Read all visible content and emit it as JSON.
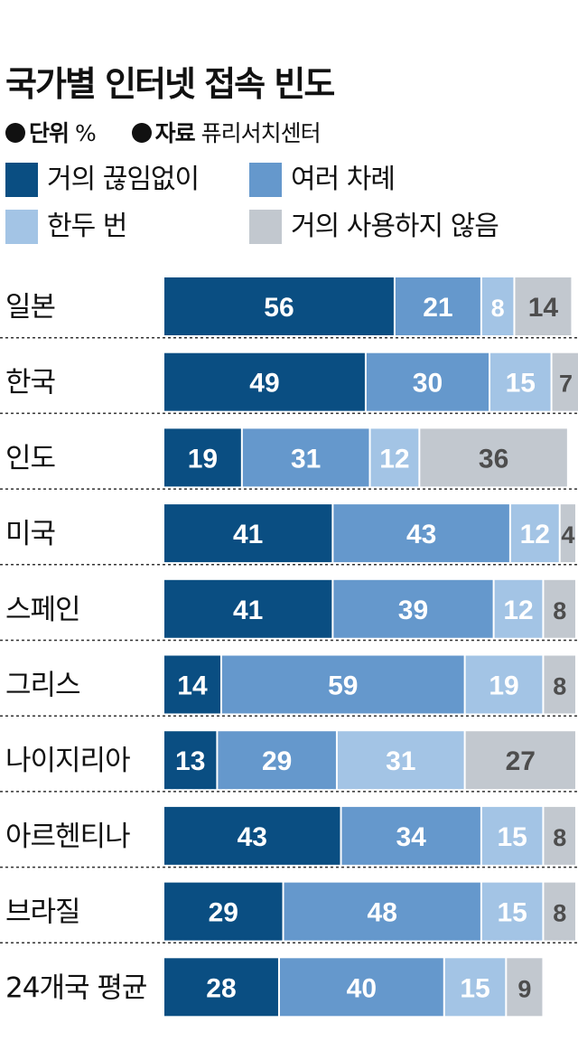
{
  "title": "국가별 인터넷 접속 빈도",
  "unit_label": "단위",
  "unit_value": "%",
  "source_label": "자료",
  "source_value": "퓨리서치센터",
  "colors": [
    "#0a4e82",
    "#6598cc",
    "#a3c4e5",
    "#c2c8cf"
  ],
  "chart_data": {
    "type": "bar",
    "orientation": "horizontal",
    "stacked": true,
    "title": "국가별 인터넷 접속 빈도",
    "categories": [
      "일본",
      "한국",
      "인도",
      "미국",
      "스페인",
      "그리스",
      "나이지리아",
      "아르헨티나",
      "브라질",
      "24개국 평균"
    ],
    "series": [
      {
        "name": "거의 끊임없이",
        "values": [
          56,
          49,
          19,
          41,
          41,
          14,
          13,
          43,
          29,
          28
        ]
      },
      {
        "name": "여러 차례",
        "values": [
          21,
          30,
          31,
          43,
          39,
          59,
          29,
          34,
          48,
          40
        ]
      },
      {
        "name": "한두 번",
        "values": [
          8,
          15,
          12,
          12,
          12,
          19,
          31,
          15,
          15,
          15
        ]
      },
      {
        "name": "거의 사용하지 않음",
        "values": [
          14,
          7,
          36,
          4,
          8,
          8,
          27,
          8,
          8,
          9
        ]
      }
    ],
    "xlim": [
      0,
      100
    ],
    "grid": false,
    "legend": "top"
  }
}
